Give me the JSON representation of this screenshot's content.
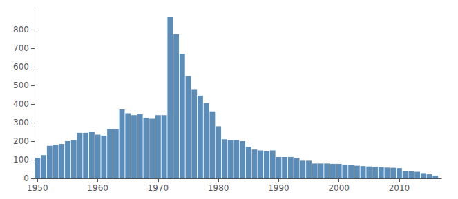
{
  "chart_data": {
    "type": "bar",
    "x": [
      1950,
      1951,
      1952,
      1953,
      1954,
      1955,
      1956,
      1957,
      1958,
      1959,
      1960,
      1961,
      1962,
      1963,
      1964,
      1965,
      1966,
      1967,
      1968,
      1969,
      1970,
      1971,
      1972,
      1973,
      1974,
      1975,
      1976,
      1977,
      1978,
      1979,
      1980,
      1981,
      1982,
      1983,
      1984,
      1985,
      1986,
      1987,
      1988,
      1989,
      1990,
      1991,
      1992,
      1993,
      1994,
      1995,
      1996,
      1997,
      1998,
      1999,
      2000,
      2001,
      2002,
      2003,
      2004,
      2005,
      2006,
      2007,
      2008,
      2009,
      2010,
      2011,
      2012,
      2013,
      2014,
      2015,
      2016
    ],
    "values": [
      110,
      125,
      175,
      180,
      185,
      200,
      205,
      245,
      245,
      250,
      235,
      230,
      265,
      265,
      370,
      350,
      340,
      345,
      325,
      320,
      340,
      340,
      870,
      775,
      670,
      550,
      480,
      445,
      405,
      360,
      280,
      210,
      205,
      205,
      200,
      170,
      155,
      150,
      145,
      150,
      115,
      115,
      115,
      110,
      95,
      95,
      80,
      80,
      80,
      78,
      78,
      72,
      70,
      68,
      66,
      64,
      62,
      60,
      58,
      57,
      55,
      40,
      38,
      35,
      28,
      22,
      15
    ],
    "color": "#5b8db8",
    "xlim": [
      1949.5,
      2017
    ],
    "xticks": [
      1950,
      1960,
      1970,
      1980,
      1990,
      2000,
      2010
    ],
    "ylim": [
      0,
      900
    ],
    "yticks": [
      0,
      100,
      200,
      300,
      400,
      500,
      600,
      700,
      800
    ],
    "grid": false
  }
}
